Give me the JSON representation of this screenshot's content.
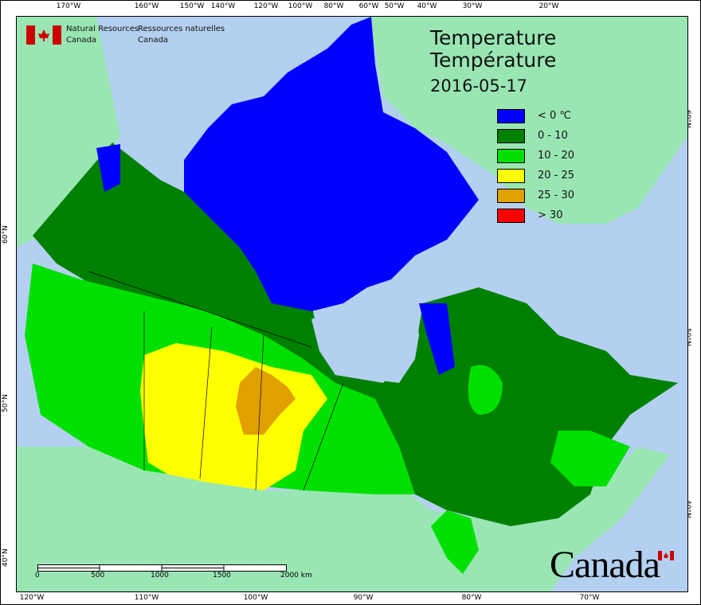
{
  "title_en": "Temperature",
  "title_fr": "Température",
  "date": "2016-05-17",
  "agency": {
    "en_line1": "Natural Resources",
    "en_line2": "Canada",
    "fr_line1": "Ressources naturelles",
    "fr_line2": "Canada"
  },
  "wordmark": "Canada",
  "legend": [
    {
      "label": "< 0 ℃",
      "color": "#0000ff"
    },
    {
      "label": "0 - 10",
      "color": "#008000"
    },
    {
      "label": "10 - 20",
      "color": "#00e000"
    },
    {
      "label": "20 - 25",
      "color": "#ffff00"
    },
    {
      "label": "25 - 30",
      "color": "#e0a000"
    },
    {
      "label": "> 30",
      "color": "#ff0000"
    }
  ],
  "colors": {
    "ocean": "#b3d0f0",
    "land_outside": "#99e6b3"
  },
  "top_ticks": [
    "170°W",
    "160°W",
    "150°W",
    "140°W",
    "120°W",
    "100°W",
    "80°W",
    "60°W",
    "50°W",
    "40°W",
    "30°W",
    "20°W"
  ],
  "bottom_ticks": [
    "120°W",
    "110°W",
    "100°W",
    "90°W",
    "80°W",
    "70°W"
  ],
  "left_ticks": [
    "60°N",
    "50°N",
    "40°N"
  ],
  "right_ticks": [
    "60°N",
    "50°N",
    "40°N"
  ],
  "scale_bar": {
    "labels": [
      "0",
      "500",
      "1000",
      "1500",
      "2000 km"
    ]
  }
}
